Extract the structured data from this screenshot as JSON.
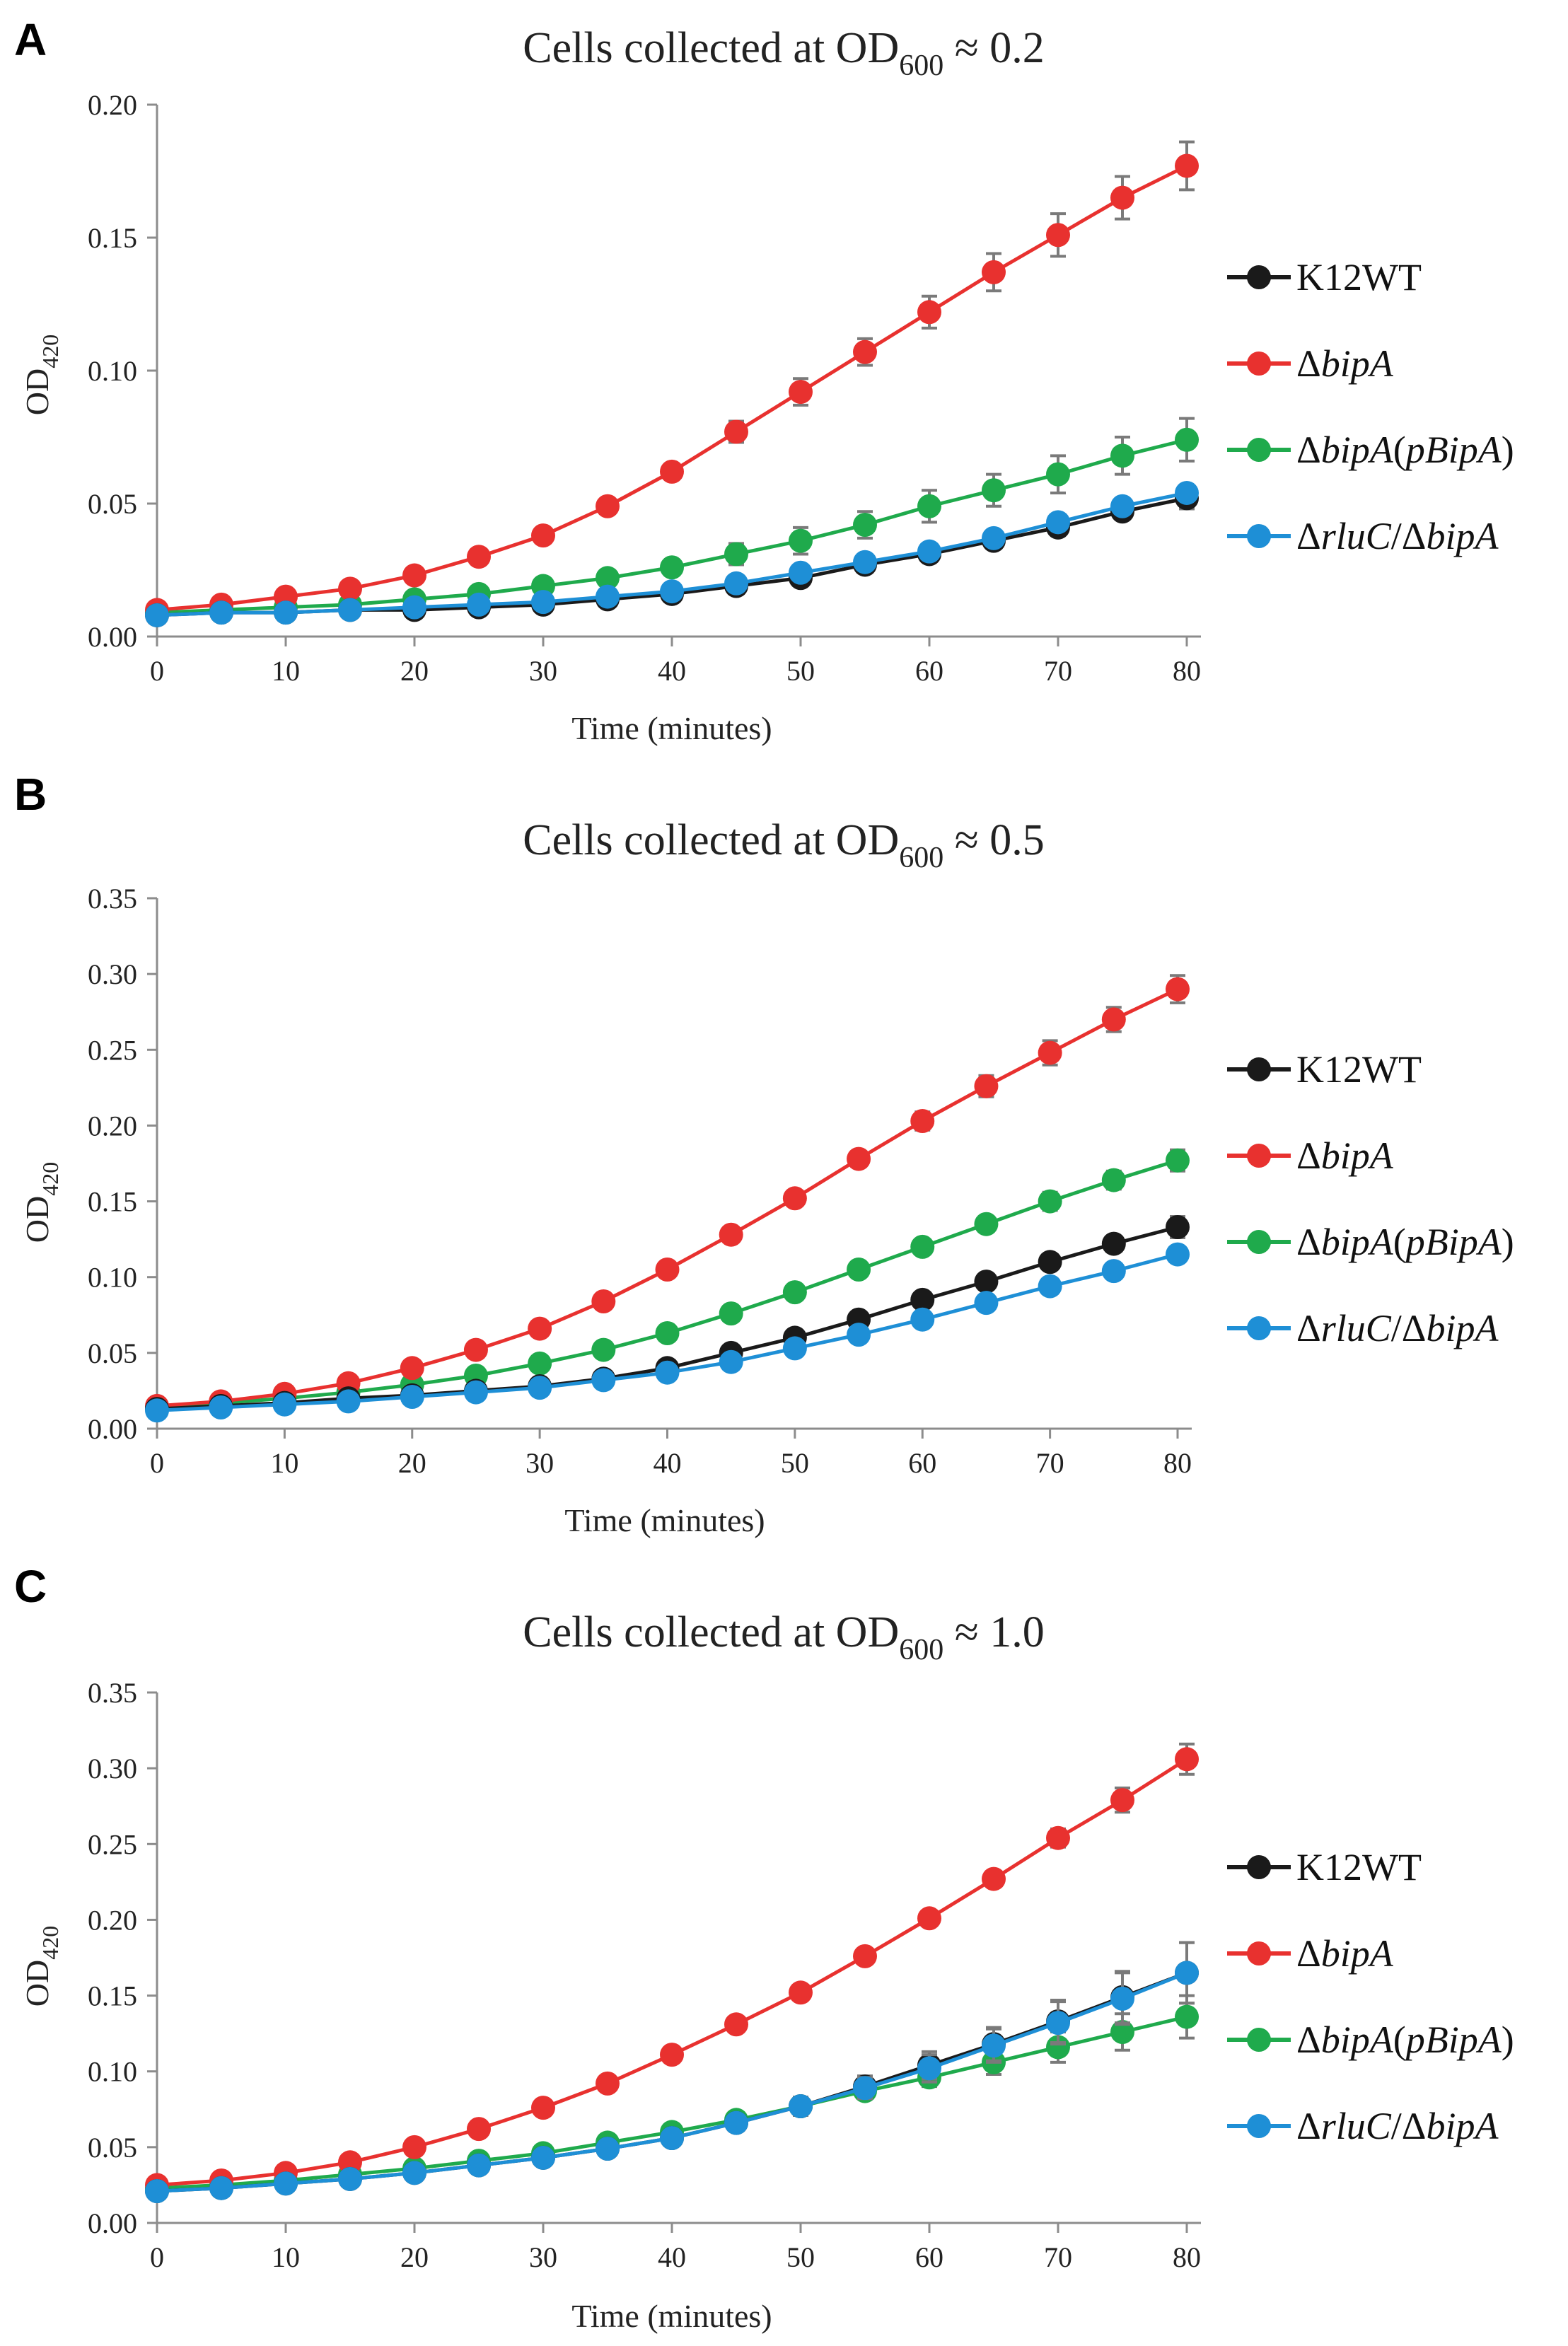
{
  "chart_data": [
    {
      "panel": "A",
      "type": "line",
      "title": "Cells collected at OD",
      "title_subscript": "600",
      "title_suffix": " ≈ 0.2",
      "xlabel": "Time (minutes)",
      "ylabel": "OD",
      "ylabel_subscript": "420",
      "x": [
        0,
        5,
        10,
        15,
        20,
        25,
        30,
        35,
        40,
        45,
        50,
        55,
        60,
        65,
        70,
        75,
        80
      ],
      "xticks": [
        0,
        10,
        20,
        30,
        40,
        50,
        60,
        70,
        80
      ],
      "xlim": [
        0,
        80
      ],
      "ylim": [
        0,
        0.2
      ],
      "yticks": [
        0,
        0.05,
        0.1,
        0.15,
        0.2
      ],
      "ytick_labels": [
        "0.00",
        "0.05",
        "0.10",
        "0.15",
        "0.20"
      ],
      "legend_position": "right",
      "series": [
        {
          "name": "K12WT",
          "color": "#1a1a1a",
          "values": [
            0.008,
            0.009,
            0.009,
            0.01,
            0.01,
            0.011,
            0.012,
            0.014,
            0.016,
            0.019,
            0.022,
            0.027,
            0.031,
            0.036,
            0.041,
            0.047,
            0.052
          ],
          "errors": [
            0.001,
            0.001,
            0.001,
            0.001,
            0.001,
            0.001,
            0.001,
            0.001,
            0.001,
            0.001,
            0.001,
            0.002,
            0.002,
            0.002,
            0.003,
            0.003,
            0.004
          ]
        },
        {
          "name": "ΔbipA",
          "color": "#e8312f",
          "values": [
            0.01,
            0.012,
            0.015,
            0.018,
            0.023,
            0.03,
            0.038,
            0.049,
            0.062,
            0.077,
            0.092,
            0.107,
            0.122,
            0.137,
            0.151,
            0.165,
            0.177
          ],
          "errors": [
            0.001,
            0.001,
            0.001,
            0.001,
            0.001,
            0.001,
            0.002,
            0.002,
            0.003,
            0.004,
            0.005,
            0.005,
            0.006,
            0.007,
            0.008,
            0.008,
            0.009
          ]
        },
        {
          "name": "ΔbipA(pBipA)",
          "color": "#1faa4c",
          "values": [
            0.009,
            0.01,
            0.011,
            0.012,
            0.014,
            0.016,
            0.019,
            0.022,
            0.026,
            0.031,
            0.036,
            0.042,
            0.049,
            0.055,
            0.061,
            0.068,
            0.074
          ],
          "errors": [
            0.001,
            0.001,
            0.001,
            0.001,
            0.001,
            0.002,
            0.002,
            0.003,
            0.003,
            0.004,
            0.005,
            0.005,
            0.006,
            0.006,
            0.007,
            0.007,
            0.008
          ]
        },
        {
          "name": "ΔrluC/ΔbipA",
          "color": "#1e8fd6",
          "values": [
            0.008,
            0.009,
            0.009,
            0.01,
            0.011,
            0.012,
            0.013,
            0.015,
            0.017,
            0.02,
            0.024,
            0.028,
            0.032,
            0.037,
            0.043,
            0.049,
            0.054
          ],
          "errors": [
            0.001,
            0.001,
            0.001,
            0.001,
            0.001,
            0.001,
            0.001,
            0.001,
            0.001,
            0.001,
            0.001,
            0.001,
            0.002,
            0.002,
            0.002,
            0.002,
            0.002
          ]
        }
      ]
    },
    {
      "panel": "B",
      "type": "line",
      "title": "Cells collected at OD",
      "title_subscript": "600",
      "title_suffix": " ≈ 0.5",
      "xlabel": "Time (minutes)",
      "ylabel": "OD",
      "ylabel_subscript": "420",
      "x": [
        0,
        5,
        10,
        15,
        20,
        25,
        30,
        35,
        40,
        45,
        50,
        55,
        60,
        65,
        70,
        75,
        80
      ],
      "xticks": [
        0,
        10,
        20,
        30,
        40,
        50,
        60,
        70,
        80
      ],
      "xlim": [
        0,
        80
      ],
      "ylim": [
        0,
        0.35
      ],
      "yticks": [
        0,
        0.05,
        0.1,
        0.15,
        0.2,
        0.25,
        0.3,
        0.35
      ],
      "ytick_labels": [
        "0.00",
        "0.05",
        "0.10",
        "0.15",
        "0.20",
        "0.25",
        "0.30",
        "0.35"
      ],
      "legend_position": "right",
      "series": [
        {
          "name": "K12WT",
          "color": "#1a1a1a",
          "values": [
            0.013,
            0.015,
            0.017,
            0.02,
            0.022,
            0.025,
            0.028,
            0.033,
            0.04,
            0.05,
            0.06,
            0.072,
            0.085,
            0.097,
            0.11,
            0.122,
            0.133
          ],
          "errors": [
            0.001,
            0.001,
            0.001,
            0.001,
            0.001,
            0.002,
            0.002,
            0.002,
            0.002,
            0.003,
            0.003,
            0.003,
            0.004,
            0.004,
            0.005,
            0.005,
            0.007
          ]
        },
        {
          "name": "ΔbipA",
          "color": "#e8312f",
          "values": [
            0.015,
            0.018,
            0.023,
            0.03,
            0.04,
            0.052,
            0.066,
            0.084,
            0.105,
            0.128,
            0.152,
            0.178,
            0.203,
            0.226,
            0.248,
            0.27,
            0.29
          ],
          "errors": [
            0.001,
            0.001,
            0.001,
            0.001,
            0.002,
            0.002,
            0.003,
            0.003,
            0.004,
            0.004,
            0.005,
            0.005,
            0.006,
            0.007,
            0.008,
            0.008,
            0.009
          ]
        },
        {
          "name": "ΔbipA(pBipA)",
          "color": "#1faa4c",
          "values": [
            0.014,
            0.017,
            0.02,
            0.024,
            0.029,
            0.035,
            0.043,
            0.052,
            0.063,
            0.076,
            0.09,
            0.105,
            0.12,
            0.135,
            0.15,
            0.164,
            0.177
          ],
          "errors": [
            0.001,
            0.001,
            0.001,
            0.001,
            0.001,
            0.002,
            0.002,
            0.002,
            0.003,
            0.003,
            0.004,
            0.004,
            0.005,
            0.005,
            0.006,
            0.006,
            0.007
          ]
        },
        {
          "name": "ΔrluC/ΔbipA",
          "color": "#1e8fd6",
          "values": [
            0.012,
            0.014,
            0.016,
            0.018,
            0.021,
            0.024,
            0.027,
            0.032,
            0.037,
            0.044,
            0.053,
            0.062,
            0.072,
            0.083,
            0.094,
            0.104,
            0.115
          ],
          "errors": [
            0.001,
            0.001,
            0.001,
            0.001,
            0.001,
            0.001,
            0.001,
            0.002,
            0.002,
            0.002,
            0.002,
            0.003,
            0.003,
            0.003,
            0.003,
            0.003,
            0.004
          ]
        }
      ]
    },
    {
      "panel": "C",
      "type": "line",
      "title": "Cells collected at OD",
      "title_subscript": "600",
      "title_suffix": " ≈ 1.0",
      "xlabel": "Time (minutes)",
      "ylabel": "OD",
      "ylabel_subscript": "420",
      "x": [
        0,
        5,
        10,
        15,
        20,
        25,
        30,
        35,
        40,
        45,
        50,
        55,
        60,
        65,
        70,
        75,
        80
      ],
      "xticks": [
        0,
        10,
        20,
        30,
        40,
        50,
        60,
        70,
        80
      ],
      "xlim": [
        0,
        80
      ],
      "ylim": [
        0,
        0.35
      ],
      "yticks": [
        0,
        0.05,
        0.1,
        0.15,
        0.2,
        0.25,
        0.3,
        0.35
      ],
      "ytick_labels": [
        "0.00",
        "0.05",
        "0.10",
        "0.15",
        "0.20",
        "0.25",
        "0.30",
        "0.35"
      ],
      "legend_position": "right",
      "series": [
        {
          "name": "K12WT",
          "color": "#1a1a1a",
          "values": [
            0.021,
            0.023,
            0.026,
            0.029,
            0.033,
            0.038,
            0.043,
            0.049,
            0.056,
            0.066,
            0.077,
            0.09,
            0.104,
            0.118,
            0.133,
            0.149,
            0.165
          ],
          "errors": [
            0.001,
            0.001,
            0.001,
            0.002,
            0.002,
            0.002,
            0.003,
            0.003,
            0.004,
            0.005,
            0.006,
            0.007,
            0.009,
            0.011,
            0.014,
            0.017,
            0.02
          ]
        },
        {
          "name": "ΔbipA",
          "color": "#e8312f",
          "values": [
            0.025,
            0.028,
            0.033,
            0.04,
            0.05,
            0.062,
            0.076,
            0.092,
            0.111,
            0.131,
            0.152,
            0.176,
            0.201,
            0.227,
            0.254,
            0.279,
            0.306
          ],
          "errors": [
            0.001,
            0.001,
            0.001,
            0.002,
            0.002,
            0.002,
            0.003,
            0.003,
            0.003,
            0.004,
            0.004,
            0.004,
            0.005,
            0.005,
            0.006,
            0.008,
            0.01
          ]
        },
        {
          "name": "ΔbipA(pBipA)",
          "color": "#1faa4c",
          "values": [
            0.023,
            0.025,
            0.028,
            0.032,
            0.036,
            0.041,
            0.046,
            0.053,
            0.06,
            0.068,
            0.077,
            0.087,
            0.096,
            0.106,
            0.116,
            0.126,
            0.136
          ],
          "errors": [
            0.001,
            0.001,
            0.001,
            0.001,
            0.002,
            0.002,
            0.002,
            0.003,
            0.003,
            0.004,
            0.004,
            0.005,
            0.006,
            0.008,
            0.01,
            0.012,
            0.014
          ]
        },
        {
          "name": "ΔrluC/ΔbipA",
          "color": "#1e8fd6",
          "values": [
            0.021,
            0.023,
            0.026,
            0.029,
            0.033,
            0.038,
            0.043,
            0.049,
            0.056,
            0.066,
            0.077,
            0.089,
            0.102,
            0.117,
            0.132,
            0.148,
            0.165
          ],
          "errors": [
            0.001,
            0.001,
            0.001,
            0.001,
            0.002,
            0.002,
            0.002,
            0.003,
            0.004,
            0.005,
            0.006,
            0.007,
            0.009,
            0.011,
            0.014,
            0.017,
            0.02
          ]
        }
      ]
    }
  ]
}
